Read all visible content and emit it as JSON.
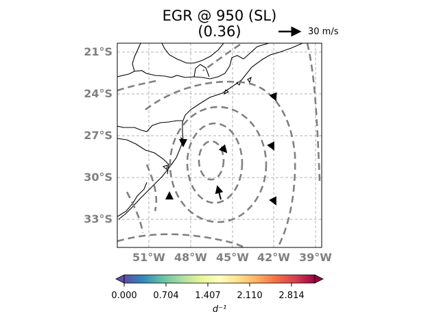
{
  "title": {
    "line1": "EGR @ 950 (SL)",
    "line2": "(0.36)"
  },
  "reference_vector": {
    "label": "30 m/s",
    "color": "#000000"
  },
  "map": {
    "lat_ticks": [
      "21°S",
      "24°S",
      "27°S",
      "30°S",
      "33°S"
    ],
    "lat_values": [
      -21,
      -24,
      -27,
      -30,
      -33
    ],
    "lon_ticks": [
      "51°W",
      "48°W",
      "45°W",
      "42°W",
      "39°W"
    ],
    "lon_values": [
      -51,
      -48,
      -45,
      -42,
      -39
    ],
    "extent": {
      "lon": [
        -53.3,
        -38.5
      ],
      "lat": [
        -35.1,
        -20.5
      ]
    },
    "gridlines": true,
    "grid_color": "#b0b0b0",
    "contour_color": "#808080",
    "coast_color": "#000000"
  },
  "colorbar": {
    "label": "d⁻¹",
    "ticks": [
      "0.000",
      "0.704",
      "1.407",
      "2.110",
      "2.814"
    ],
    "tick_values": [
      0.0,
      0.704,
      1.407,
      2.11,
      2.814
    ],
    "range": [
      0,
      3.2
    ],
    "colormap": [
      "#5e4fa2",
      "#3288bd",
      "#66c2a5",
      "#abdda4",
      "#e6f598",
      "#ffffbf",
      "#fee08b",
      "#fdae61",
      "#f46d43",
      "#d53e4f",
      "#9e0142"
    ],
    "extend": "both"
  }
}
